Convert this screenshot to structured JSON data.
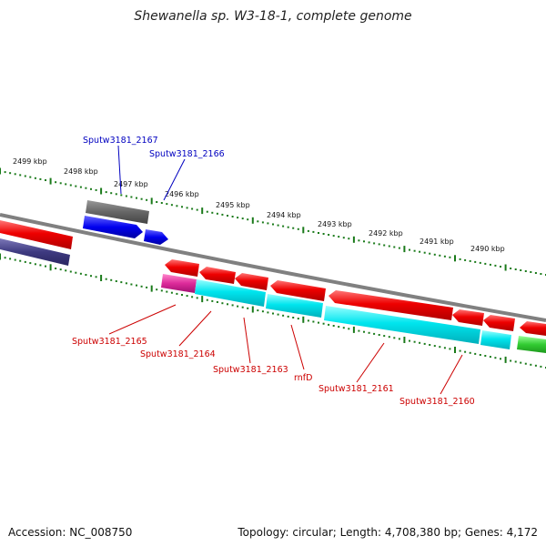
{
  "title": "Shewanella sp. W3-18-1, complete genome",
  "accession_text": "Accession: NC_008750",
  "summary_text": "Topology: circular; Length: 4,708,380 bp; Genes: 4,172",
  "colors": {
    "backbone": "#808080",
    "tick": "#1a7a1a",
    "label_top": "#0000c0",
    "label_bottom": "#cc0000",
    "red": "#ee0000",
    "cyan": "#00e5ee",
    "magenta": "#dd2a9a",
    "blue": "#0000ee",
    "gray": "#666666",
    "navy": "#3e3a80",
    "green": "#33cc33"
  },
  "scale": {
    "kbp_labels": [
      "2499 kbp",
      "2498 kbp",
      "2497 kbp",
      "2496 kbp",
      "2495 kbp",
      "2494 kbp",
      "2493 kbp",
      "2492 kbp",
      "2491 kbp",
      "2490 kbp"
    ]
  },
  "top_genes": [
    {
      "label": "Sputw3181_2167",
      "color": "label_top"
    },
    {
      "label": "Sputw3181_2166",
      "color": "label_top"
    }
  ],
  "bottom_genes": [
    {
      "label": "Sputw3181_2165"
    },
    {
      "label": "Sputw3181_2164"
    },
    {
      "label": "Sputw3181_2163"
    },
    {
      "label": "rnfD"
    },
    {
      "label": "Sputw3181_2161"
    },
    {
      "label": "Sputw3181_2160"
    }
  ]
}
